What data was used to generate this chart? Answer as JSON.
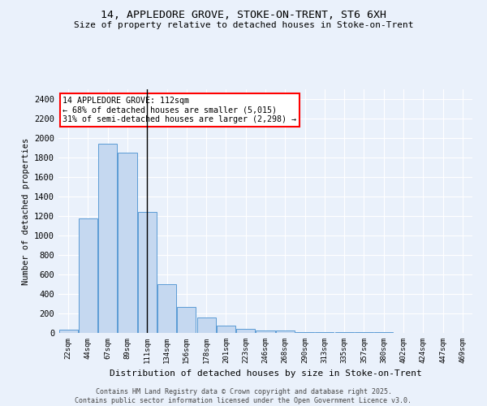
{
  "title_line1": "14, APPLEDORE GROVE, STOKE-ON-TRENT, ST6 6XH",
  "title_line2": "Size of property relative to detached houses in Stoke-on-Trent",
  "xlabel": "Distribution of detached houses by size in Stoke-on-Trent",
  "ylabel": "Number of detached properties",
  "categories": [
    "22sqm",
    "44sqm",
    "67sqm",
    "89sqm",
    "111sqm",
    "134sqm",
    "156sqm",
    "178sqm",
    "201sqm",
    "223sqm",
    "246sqm",
    "268sqm",
    "290sqm",
    "313sqm",
    "335sqm",
    "357sqm",
    "380sqm",
    "402sqm",
    "424sqm",
    "447sqm",
    "469sqm"
  ],
  "values": [
    30,
    1175,
    1945,
    1850,
    1240,
    500,
    270,
    160,
    75,
    38,
    28,
    25,
    10,
    5,
    5,
    5,
    5,
    0,
    0,
    0,
    0
  ],
  "bar_color": "#c5d8f0",
  "bar_edge_color": "#5b9bd5",
  "vline_x": 3.98,
  "vline_color": "#000000",
  "annotation_text": "14 APPLEDORE GROVE: 112sqm\n← 68% of detached houses are smaller (5,015)\n31% of semi-detached houses are larger (2,298) →",
  "annotation_box_color": "white",
  "annotation_box_edge": "red",
  "ylim": [
    0,
    2500
  ],
  "yticks": [
    0,
    200,
    400,
    600,
    800,
    1000,
    1200,
    1400,
    1600,
    1800,
    2000,
    2200,
    2400
  ],
  "bg_color": "#eaf1fb",
  "grid_color": "#ffffff",
  "footer_line1": "Contains HM Land Registry data © Crown copyright and database right 2025.",
  "footer_line2": "Contains public sector information licensed under the Open Government Licence v3.0."
}
